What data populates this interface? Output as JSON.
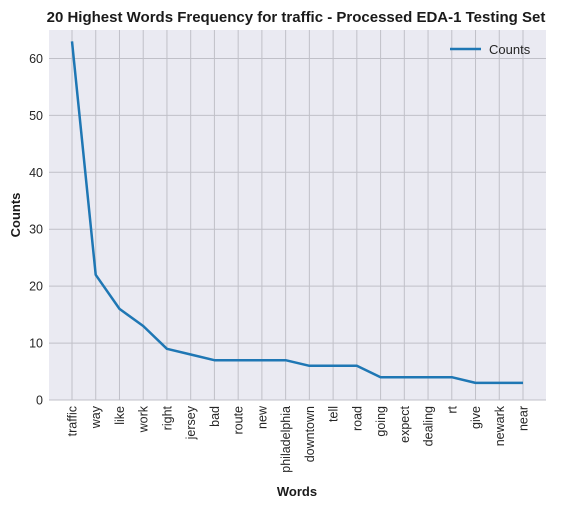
{
  "chart_data": {
    "type": "line",
    "title": "20 Highest Words Frequency for traffic - Processed EDA-1 Testing Set",
    "xlabel": "Words",
    "ylabel": "Counts",
    "categories": [
      "traffic",
      "way",
      "like",
      "work",
      "right",
      "jersey",
      "bad",
      "route",
      "new",
      "philadelphia",
      "downtown",
      "tell",
      "road",
      "going",
      "expect",
      "dealing",
      "rt",
      "give",
      "newark",
      "near"
    ],
    "series": [
      {
        "name": "Counts",
        "color": "#1f77b4",
        "values": [
          63,
          22,
          16,
          13,
          9,
          8,
          7,
          7,
          7,
          7,
          6,
          6,
          6,
          4,
          4,
          4,
          4,
          3,
          3,
          3
        ]
      }
    ],
    "ylim": [
      0,
      65
    ],
    "yticks": [
      0,
      10,
      20,
      30,
      40,
      50,
      60
    ],
    "grid": true,
    "legend_position": "top-right",
    "background_color": "#eaeaf2",
    "grid_color": "#c0c0c8"
  }
}
